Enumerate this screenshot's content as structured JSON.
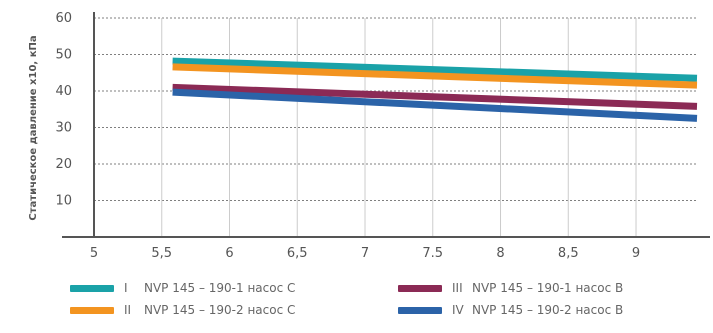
{
  "chart_data": {
    "type": "line",
    "ylabel": "Статическое давление х10, кПа",
    "xlabel": "",
    "xlim": [
      5,
      9.45
    ],
    "ylim": [
      0,
      60
    ],
    "x_ticks": [
      "5",
      "5,5",
      "6",
      "6,5",
      "7",
      "7.5",
      "8",
      "8,5",
      "9"
    ],
    "x_tick_values": [
      5,
      5.5,
      6,
      6.5,
      7,
      7.5,
      8,
      8.5,
      9
    ],
    "y_ticks": [
      "10",
      "20",
      "30",
      "40",
      "50",
      "60"
    ],
    "y_tick_values": [
      10,
      20,
      30,
      40,
      50,
      60
    ],
    "grid": "dashed",
    "legend": "bottom",
    "series": [
      {
        "numeral": "I",
        "name": "NVP 145 – 190-1 насос C",
        "color": "#1aa2a8",
        "x": [
          5.58,
          9.45
        ],
        "values": [
          48.2,
          43.5
        ]
      },
      {
        "numeral": "II",
        "name": "NVP 145 – 190-2 насос C",
        "color": "#f39420",
        "x": [
          5.58,
          9.45
        ],
        "values": [
          46.6,
          41.6
        ]
      },
      {
        "numeral": "III",
        "name": "NVP 145 – 190-1 насос B",
        "color": "#8b2a55",
        "x": [
          5.58,
          9.45
        ],
        "values": [
          41.0,
          35.8
        ]
      },
      {
        "numeral": "IV",
        "name": "NVP 145 – 190-2 насос B",
        "color": "#2b63a8",
        "x": [
          5.58,
          9.45
        ],
        "values": [
          39.7,
          32.5
        ]
      }
    ]
  }
}
